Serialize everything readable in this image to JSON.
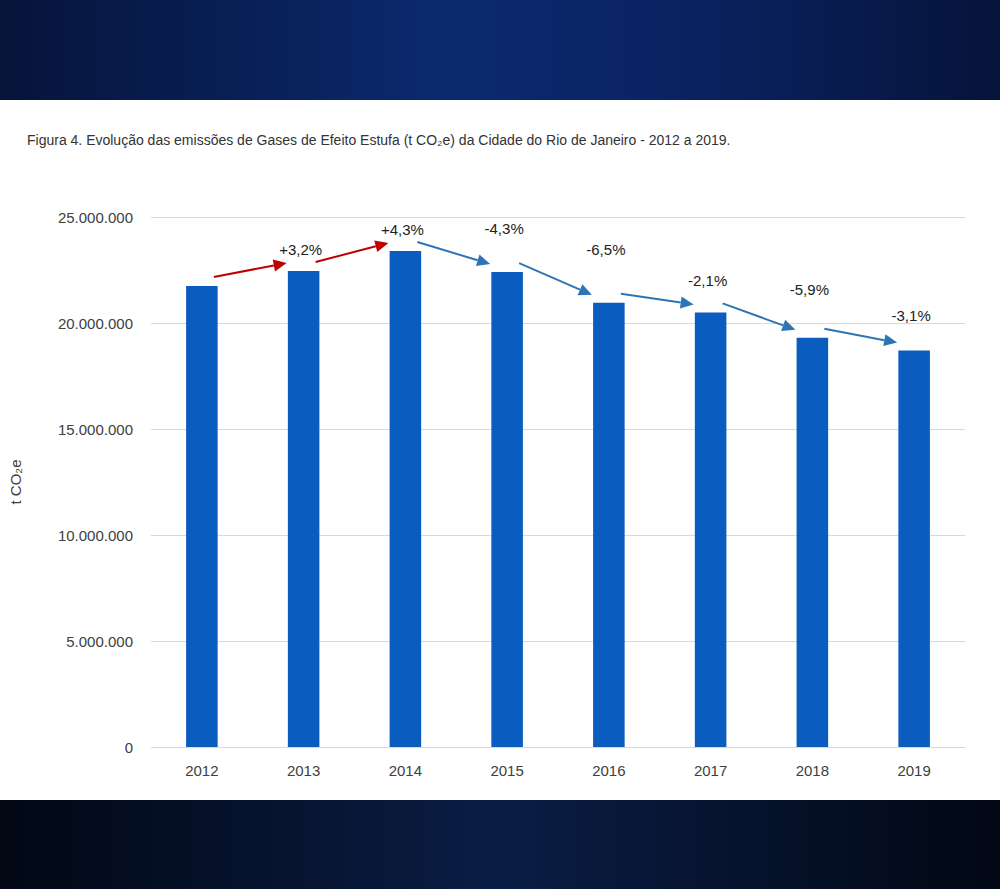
{
  "chart_data": {
    "type": "bar",
    "title": "Figura 4. Evolução das emissões de Gases de Efeito Estufa (t CO₂e) da Cidade do Rio de Janeiro - 2012 a 2019.",
    "y_label": "t CO₂e",
    "categories": [
      "2012",
      "2013",
      "2014",
      "2015",
      "2016",
      "2017",
      "2018",
      "2019"
    ],
    "values": [
      21750000,
      22450000,
      23400000,
      22400000,
      20950000,
      20500000,
      19300000,
      18700000
    ],
    "color": "#0b5cbf",
    "ylim": [
      0,
      25000000
    ],
    "yticks": [
      0,
      {
        "value": 5000000,
        "label": "5.000.000"
      },
      {
        "value": 10000000,
        "label": "10.000.000"
      },
      {
        "value": 15000000,
        "label": "15.000.000"
      },
      {
        "value": 20000000,
        "label": "20.000.000"
      },
      {
        "value": 25000000,
        "label": "25.000.000"
      }
    ],
    "grid": true,
    "annotations": [
      {
        "from": "2012",
        "to": "2013",
        "text": "+3,2%",
        "color": "#c00000"
      },
      {
        "from": "2013",
        "to": "2014",
        "text": "+4,3%",
        "color": "#c00000"
      },
      {
        "from": "2014",
        "to": "2015",
        "text": "-4,3%",
        "color": "#2e75b6"
      },
      {
        "from": "2015",
        "to": "2016",
        "text": "-6,5%",
        "color": "#2e75b6"
      },
      {
        "from": "2016",
        "to": "2017",
        "text": "-2,1%",
        "color": "#2e75b6"
      },
      {
        "from": "2017",
        "to": "2018",
        "text": "-5,9%",
        "color": "#2e75b6"
      },
      {
        "from": "2018",
        "to": "2019",
        "text": "-3,1%",
        "color": "#2e75b6"
      }
    ]
  }
}
